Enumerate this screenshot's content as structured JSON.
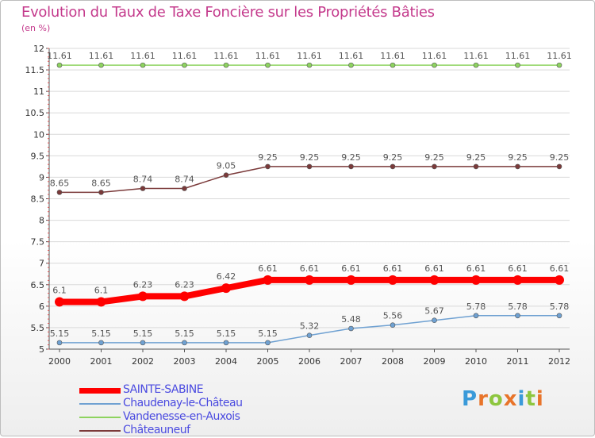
{
  "title": "Evolution du Taux de Taxe Foncière sur les Propriétés Bâties",
  "unit_label": "(en %)",
  "logo_text": "Proxiti",
  "chart_data": {
    "type": "line",
    "title": "Evolution du Taux de Taxe Foncière sur les Propriétés Bâties",
    "ylabel": "(en %)",
    "xlabel": "",
    "ylim": [
      5,
      12
    ],
    "yticks": [
      "5",
      "5.5",
      "6",
      "6.5",
      "7",
      "7.5",
      "8",
      "8.5",
      "9",
      "9.5",
      "10",
      "10.5",
      "11",
      "11.5",
      "12"
    ],
    "categories": [
      "2000",
      "2001",
      "2002",
      "2003",
      "2004",
      "2005",
      "2006",
      "2007",
      "2008",
      "2009",
      "2010",
      "2011",
      "2012"
    ],
    "series": [
      {
        "name": "SAINTE-SABINE",
        "color": "#ff0000",
        "values": [
          6.1,
          6.1,
          6.23,
          6.23,
          6.42,
          6.61,
          6.61,
          6.61,
          6.61,
          6.61,
          6.61,
          6.61,
          6.61
        ],
        "labels": [
          "6.1",
          "6.1",
          "6.23",
          "6.23",
          "6.42",
          "6.61",
          "6.61",
          "6.61",
          "6.61",
          "6.61",
          "6.61",
          "6.61",
          "6.61"
        ]
      },
      {
        "name": "Chaudenay-le-Château",
        "color": "#6fa1d2",
        "values": [
          5.15,
          5.15,
          5.15,
          5.15,
          5.15,
          5.15,
          5.32,
          5.48,
          5.56,
          5.67,
          5.78,
          5.78,
          5.78
        ],
        "labels": [
          "5.15",
          "5.15",
          "5.15",
          "5.15",
          "5.15",
          "5.15",
          "5.32",
          "5.48",
          "5.56",
          "5.67",
          "5.78",
          "5.78",
          "5.78"
        ]
      },
      {
        "name": "Vandenesse-en-Auxois",
        "color": "#8dd35f",
        "values": [
          11.61,
          11.61,
          11.61,
          11.61,
          11.61,
          11.61,
          11.61,
          11.61,
          11.61,
          11.61,
          11.61,
          11.61,
          11.61
        ],
        "labels": [
          "11.61",
          "11.61",
          "11.61",
          "11.61",
          "11.61",
          "11.61",
          "11.61",
          "11.61",
          "11.61",
          "11.61",
          "11.61",
          "11.61",
          "11.61"
        ]
      },
      {
        "name": "Châteauneuf",
        "color": "#7b3a3a",
        "values": [
          8.65,
          8.65,
          8.74,
          8.74,
          9.05,
          9.25,
          9.25,
          9.25,
          9.25,
          9.25,
          9.25,
          9.25,
          9.25
        ],
        "labels": [
          "8.65",
          "8.65",
          "8.74",
          "8.74",
          "9.05",
          "9.25",
          "9.25",
          "9.25",
          "9.25",
          "9.25",
          "9.25",
          "9.25",
          "9.25"
        ]
      }
    ]
  }
}
